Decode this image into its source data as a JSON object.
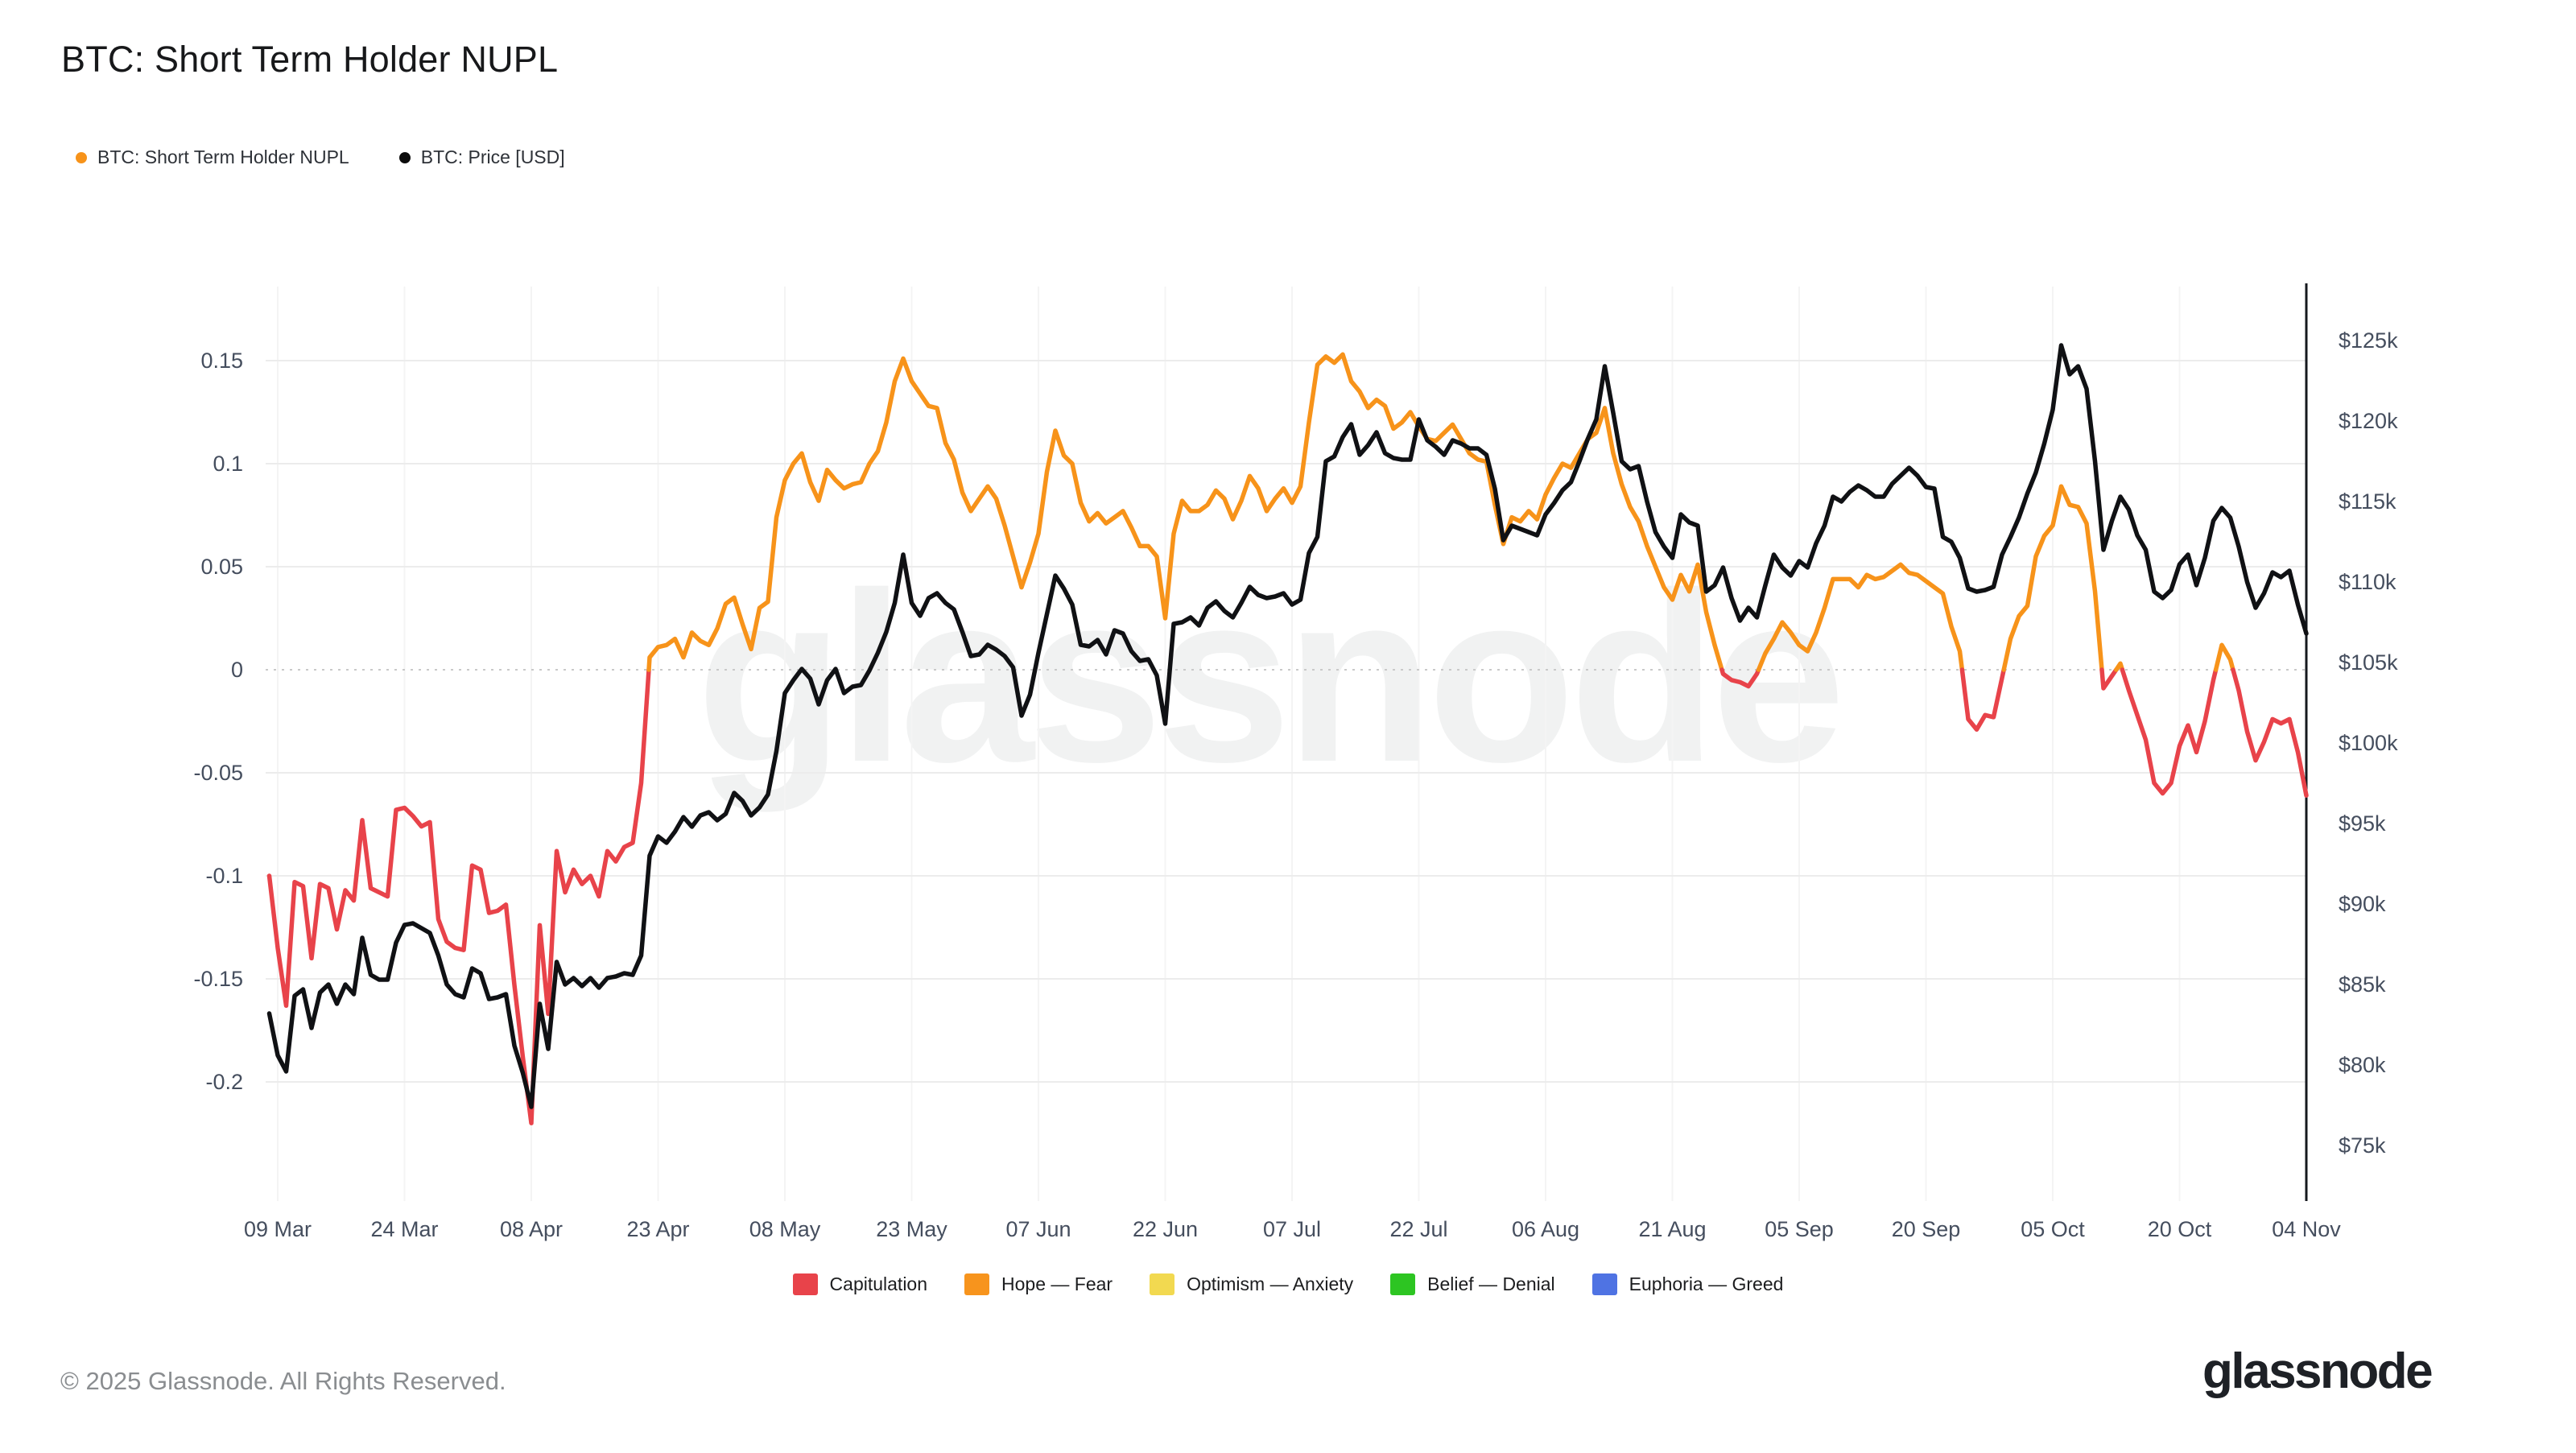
{
  "header": {
    "title": "BTC: Short Term Holder NUPL",
    "legend": [
      {
        "label": "BTC: Short Term Holder NUPL",
        "color": "#F7931A"
      },
      {
        "label": "BTC: Price [USD]",
        "color": "#0b0b0b"
      }
    ]
  },
  "watermark": "glassnode",
  "footer": {
    "copyright": "© 2025 Glassnode. All Rights Reserved.",
    "logo_text": "glassnode"
  },
  "chart_data": {
    "type": "line",
    "title": "BTC: Short Term Holder NUPL",
    "x_axis": {
      "unit": "date",
      "x_encoding": "values are daily, consecutive; day 0 = 09 Mar 2025, last day 240 = 04 Nov 2025, series start at day -1 (08 Mar 2025)",
      "start_day": -1,
      "step_days": 1,
      "tick_days": [
        0,
        15,
        30,
        45,
        60,
        75,
        90,
        105,
        120,
        135,
        150,
        165,
        180,
        195,
        210,
        225,
        240
      ],
      "tick_labels": [
        "09 Mar",
        "24 Mar",
        "08 Apr",
        "23 Apr",
        "08 May",
        "23 May",
        "07 Jun",
        "22 Jun",
        "07 Jul",
        "22 Jul",
        "06 Aug",
        "21 Aug",
        "05 Sep",
        "20 Sep",
        "05 Oct",
        "20 Oct",
        "04 Nov"
      ]
    },
    "y_left": {
      "label": "BTC: Short Term Holder NUPL",
      "ticks": [
        0.15,
        0.1,
        0.05,
        0,
        -0.05,
        -0.1,
        -0.15,
        -0.2
      ],
      "tick_labels": [
        "0.15",
        "0.1",
        "0.05",
        "0",
        "-0.05",
        "-0.1",
        "-0.15",
        "-0.2"
      ],
      "range": [
        -0.245,
        0.185
      ],
      "zero_line_style": "dotted"
    },
    "y_right": {
      "label": "BTC: Price [USD]",
      "ticks_k": [
        125,
        120,
        115,
        110,
        105,
        100,
        95,
        90,
        85,
        80,
        75
      ],
      "tick_labels": [
        "$125k",
        "$120k",
        "$115k",
        "$110k",
        "$105k",
        "$100k",
        "$95k",
        "$90k",
        "$85k",
        "$80k",
        "$75k"
      ],
      "range_k": [
        71.5,
        128.5
      ]
    },
    "grid": {
      "horizontal": true,
      "vertical": true,
      "h_color": "#ececec",
      "v_color": "#f4f4f4",
      "zero_dotted_color": "#c9c9c9"
    },
    "colors": {
      "nupl_positive": "#F7931A",
      "nupl_negative": "#E8434A",
      "price": "#101114",
      "axis_line": "#15181e"
    },
    "series": [
      {
        "name": "BTC: Short Term Holder NUPL",
        "color_rule": "orange (Hope–Fear) when value >= 0, red (Capitulation) when value < 0",
        "values": [
          -0.1,
          -0.135,
          -0.163,
          -0.103,
          -0.105,
          -0.14,
          -0.104,
          -0.106,
          -0.126,
          -0.107,
          -0.112,
          -0.073,
          -0.106,
          -0.108,
          -0.11,
          -0.068,
          -0.067,
          -0.071,
          -0.076,
          -0.074,
          -0.121,
          -0.132,
          -0.135,
          -0.136,
          -0.095,
          -0.097,
          -0.118,
          -0.117,
          -0.114,
          -0.153,
          -0.188,
          -0.22,
          -0.124,
          -0.167,
          -0.088,
          -0.108,
          -0.097,
          -0.104,
          -0.1,
          -0.11,
          -0.088,
          -0.093,
          -0.086,
          -0.084,
          -0.055,
          0.006,
          0.011,
          0.012,
          0.015,
          0.006,
          0.018,
          0.014,
          0.012,
          0.02,
          0.032,
          0.035,
          0.022,
          0.01,
          0.03,
          0.033,
          0.074,
          0.092,
          0.1,
          0.105,
          0.091,
          0.082,
          0.097,
          0.092,
          0.088,
          0.09,
          0.091,
          0.1,
          0.106,
          0.12,
          0.14,
          0.151,
          0.14,
          0.134,
          0.128,
          0.127,
          0.11,
          0.102,
          0.086,
          0.077,
          0.083,
          0.089,
          0.083,
          0.07,
          0.055,
          0.04,
          0.052,
          0.066,
          0.096,
          0.116,
          0.104,
          0.1,
          0.081,
          0.072,
          0.076,
          0.071,
          0.074,
          0.077,
          0.069,
          0.06,
          0.06,
          0.055,
          0.025,
          0.066,
          0.082,
          0.077,
          0.077,
          0.08,
          0.087,
          0.083,
          0.073,
          0.082,
          0.094,
          0.088,
          0.077,
          0.083,
          0.088,
          0.081,
          0.089,
          0.12,
          0.148,
          0.152,
          0.149,
          0.153,
          0.14,
          0.135,
          0.127,
          0.131,
          0.128,
          0.117,
          0.12,
          0.125,
          0.118,
          0.112,
          0.111,
          0.115,
          0.119,
          0.112,
          0.105,
          0.102,
          0.101,
          0.08,
          0.061,
          0.074,
          0.072,
          0.077,
          0.073,
          0.085,
          0.093,
          0.1,
          0.098,
          0.105,
          0.112,
          0.115,
          0.127,
          0.105,
          0.09,
          0.079,
          0.072,
          0.06,
          0.05,
          0.04,
          0.034,
          0.046,
          0.038,
          0.051,
          0.028,
          0.012,
          -0.002,
          -0.005,
          -0.006,
          -0.008,
          -0.002,
          0.008,
          0.015,
          0.023,
          0.018,
          0.012,
          0.009,
          0.018,
          0.03,
          0.044,
          0.044,
          0.044,
          0.04,
          0.046,
          0.044,
          0.045,
          0.048,
          0.051,
          0.047,
          0.046,
          0.043,
          0.04,
          0.037,
          0.021,
          0.009,
          -0.024,
          -0.029,
          -0.022,
          -0.023,
          -0.004,
          0.015,
          0.026,
          0.031,
          0.055,
          0.065,
          0.07,
          0.089,
          0.08,
          0.079,
          0.071,
          0.038,
          -0.009,
          -0.003,
          0.003,
          -0.01,
          -0.022,
          -0.034,
          -0.055,
          -0.06,
          -0.055,
          -0.037,
          -0.027,
          -0.04,
          -0.025,
          -0.005,
          0.012,
          0.005,
          -0.01,
          -0.03,
          -0.044,
          -0.035,
          -0.024,
          -0.026,
          -0.024,
          -0.04,
          -0.061
        ]
      },
      {
        "name": "BTC: Price [USD]",
        "unit": "thousand USD",
        "values": [
          83.2,
          80.6,
          79.6,
          84.3,
          84.7,
          82.3,
          84.5,
          85.0,
          83.8,
          85.0,
          84.4,
          87.9,
          85.6,
          85.3,
          85.3,
          87.6,
          88.7,
          88.8,
          88.5,
          88.2,
          86.8,
          85.0,
          84.4,
          84.2,
          86.0,
          85.7,
          84.1,
          84.2,
          84.4,
          81.2,
          79.5,
          77.4,
          83.8,
          81.0,
          86.4,
          85.0,
          85.4,
          84.9,
          85.4,
          84.8,
          85.4,
          85.5,
          85.7,
          85.6,
          86.8,
          93.0,
          94.2,
          93.8,
          94.5,
          95.4,
          94.8,
          95.5,
          95.7,
          95.2,
          95.6,
          96.9,
          96.4,
          95.5,
          96.0,
          96.8,
          99.5,
          103.1,
          103.9,
          104.6,
          104.0,
          102.4,
          103.9,
          104.6,
          103.1,
          103.5,
          103.6,
          104.5,
          105.6,
          106.9,
          108.7,
          111.7,
          108.7,
          107.9,
          109.0,
          109.3,
          108.7,
          108.3,
          106.9,
          105.4,
          105.5,
          106.1,
          105.8,
          105.4,
          104.7,
          101.7,
          103.0,
          105.6,
          108.0,
          110.4,
          109.6,
          108.6,
          106.1,
          106.0,
          106.4,
          105.5,
          107.0,
          106.8,
          105.7,
          105.1,
          105.2,
          104.2,
          101.2,
          107.4,
          107.5,
          107.8,
          107.3,
          108.4,
          108.8,
          108.2,
          107.8,
          108.7,
          109.7,
          109.2,
          109.0,
          109.1,
          109.3,
          108.6,
          108.9,
          111.8,
          112.8,
          117.5,
          117.8,
          119.0,
          119.8,
          117.9,
          118.5,
          119.3,
          118.0,
          117.7,
          117.6,
          117.6,
          120.1,
          118.8,
          118.4,
          117.9,
          118.8,
          118.6,
          118.3,
          118.3,
          117.9,
          115.8,
          112.6,
          113.5,
          113.3,
          113.1,
          112.9,
          114.2,
          114.9,
          115.7,
          116.2,
          117.5,
          118.9,
          120.1,
          123.4,
          120.5,
          117.5,
          117.0,
          117.2,
          115.0,
          113.1,
          112.2,
          111.5,
          114.2,
          113.7,
          113.5,
          109.4,
          109.8,
          110.9,
          109.0,
          107.6,
          108.4,
          107.8,
          109.8,
          111.7,
          110.9,
          110.4,
          111.3,
          110.9,
          112.4,
          113.5,
          115.3,
          115.0,
          115.6,
          116.0,
          115.7,
          115.3,
          115.3,
          116.1,
          116.6,
          117.1,
          116.6,
          115.9,
          115.8,
          112.8,
          112.5,
          111.5,
          109.6,
          109.4,
          109.5,
          109.7,
          111.7,
          112.8,
          114.0,
          115.5,
          116.8,
          118.6,
          120.7,
          124.7,
          122.9,
          123.4,
          122.0,
          117.5,
          112.0,
          113.8,
          115.3,
          114.5,
          112.9,
          112.0,
          109.4,
          109.0,
          109.5,
          111.1,
          111.7,
          109.8,
          111.5,
          113.8,
          114.6,
          114.0,
          112.2,
          110.0,
          108.4,
          109.3,
          110.6,
          110.3,
          110.7,
          108.6,
          106.8
        ]
      }
    ],
    "regime_legend": [
      {
        "label": "Capitulation",
        "color": "#E8434A"
      },
      {
        "label": "Hope — Fear",
        "color": "#F7941D"
      },
      {
        "label": "Optimism — Anxiety",
        "color": "#F2D950"
      },
      {
        "label": "Belief — Denial",
        "color": "#2DC522"
      },
      {
        "label": "Euphoria — Greed",
        "color": "#4F73E3"
      }
    ],
    "legend_position": "bottom-center"
  }
}
